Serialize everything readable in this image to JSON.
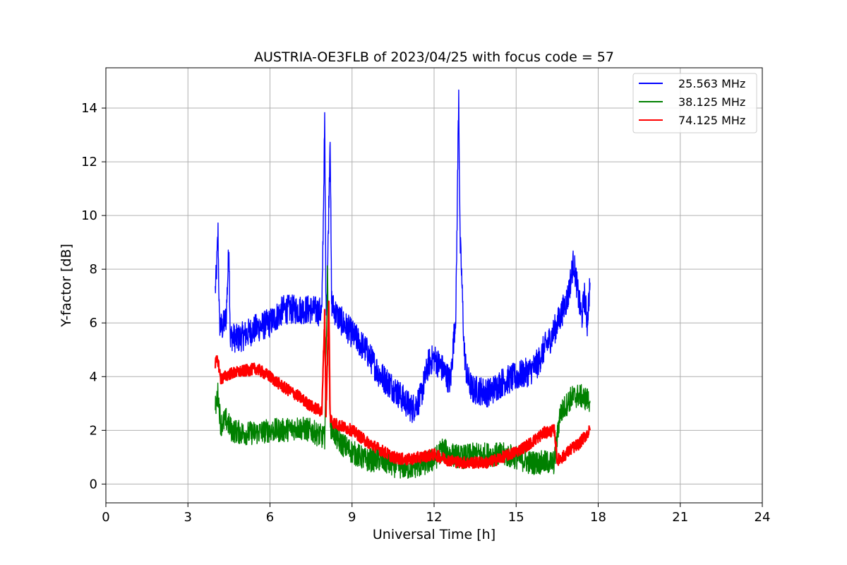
{
  "chart_data": {
    "type": "line",
    "title": "AUSTRIA-OE3FLB of 2023/04/25 with focus code = 57",
    "xlabel": "Universal Time [h]",
    "ylabel": "Y-factor [dB]",
    "xlim": [
      0,
      24
    ],
    "ylim": [
      -0.7,
      15.5
    ],
    "xticks": [
      0,
      3,
      6,
      9,
      12,
      15,
      18,
      21,
      24
    ],
    "yticks": [
      0,
      2,
      4,
      6,
      8,
      10,
      12,
      14
    ],
    "grid": true,
    "legend_position": "top-right",
    "series": [
      {
        "name": "25.563 MHz",
        "color": "#0000ff",
        "x": [
          4.0,
          4.05,
          4.1,
          4.15,
          4.25,
          4.4,
          4.5,
          4.55,
          4.6,
          4.8,
          5.0,
          5.5,
          6.0,
          6.5,
          7.0,
          7.5,
          7.9,
          8.0,
          8.05,
          8.1,
          8.2,
          8.25,
          8.3,
          8.5,
          9.0,
          9.5,
          10.0,
          10.5,
          11.0,
          11.2,
          11.5,
          11.8,
          12.0,
          12.3,
          12.6,
          12.8,
          12.9,
          12.95,
          13.0,
          13.1,
          13.2,
          13.4,
          13.6,
          14.0,
          14.5,
          15.0,
          15.5,
          15.8,
          16.0,
          16.3,
          16.6,
          16.9,
          17.1,
          17.3,
          17.4,
          17.5,
          17.6,
          17.7
        ],
        "y": [
          7.2,
          8.0,
          9.4,
          6.0,
          5.8,
          6.2,
          8.9,
          5.4,
          5.5,
          5.4,
          5.5,
          5.8,
          6.0,
          6.5,
          6.5,
          6.5,
          6.4,
          13.5,
          6.5,
          7.5,
          13.2,
          6.8,
          6.6,
          6.2,
          5.6,
          5.0,
          4.1,
          3.6,
          3.0,
          2.8,
          3.2,
          4.5,
          4.7,
          4.3,
          3.8,
          6.5,
          14.7,
          9.0,
          8.0,
          5.0,
          4.0,
          3.5,
          3.5,
          3.4,
          3.8,
          4.0,
          4.2,
          4.5,
          5.0,
          5.5,
          6.2,
          7.0,
          8.3,
          6.8,
          6.2,
          7.0,
          6.0,
          7.5
        ]
      },
      {
        "name": "38.125 MHz",
        "color": "#008000",
        "x": [
          4.0,
          4.1,
          4.2,
          4.4,
          4.6,
          5.0,
          5.5,
          6.0,
          6.5,
          7.0,
          7.5,
          8.0,
          8.1,
          8.2,
          8.5,
          9.0,
          9.5,
          10.0,
          10.5,
          11.0,
          11.5,
          12.0,
          12.3,
          12.6,
          13.0,
          13.5,
          14.0,
          14.5,
          15.0,
          15.5,
          16.0,
          16.4,
          16.6,
          17.0,
          17.3,
          17.7
        ],
        "y": [
          2.8,
          3.4,
          2.2,
          2.4,
          2.0,
          1.9,
          1.9,
          2.0,
          2.0,
          2.1,
          2.0,
          1.7,
          7.9,
          2.2,
          1.6,
          1.2,
          0.9,
          0.9,
          0.7,
          0.6,
          0.7,
          0.9,
          1.3,
          1.1,
          1.0,
          1.1,
          1.1,
          1.1,
          1.0,
          0.8,
          0.8,
          0.8,
          2.6,
          3.2,
          3.3,
          3.1
        ]
      },
      {
        "name": "74.125 MHz",
        "color": "#ff0000",
        "x": [
          4.0,
          4.1,
          4.2,
          4.5,
          5.0,
          5.5,
          6.0,
          6.5,
          7.0,
          7.5,
          7.9,
          8.0,
          8.05,
          8.15,
          8.2,
          8.3,
          8.5,
          9.0,
          9.5,
          10.0,
          10.5,
          11.0,
          11.5,
          12.0,
          12.5,
          13.0,
          13.5,
          14.0,
          14.5,
          15.0,
          15.5,
          16.0,
          16.4,
          16.5,
          16.7,
          17.0,
          17.3,
          17.7
        ],
        "y": [
          4.5,
          4.6,
          3.9,
          4.1,
          4.2,
          4.3,
          4.0,
          3.6,
          3.3,
          2.9,
          2.7,
          6.3,
          2.6,
          6.7,
          2.5,
          2.3,
          2.2,
          2.0,
          1.6,
          1.3,
          1.0,
          0.9,
          1.0,
          1.1,
          0.9,
          0.8,
          0.8,
          0.8,
          1.0,
          1.2,
          1.5,
          1.9,
          2.0,
          0.9,
          1.0,
          1.3,
          1.5,
          2.0
        ]
      }
    ]
  }
}
